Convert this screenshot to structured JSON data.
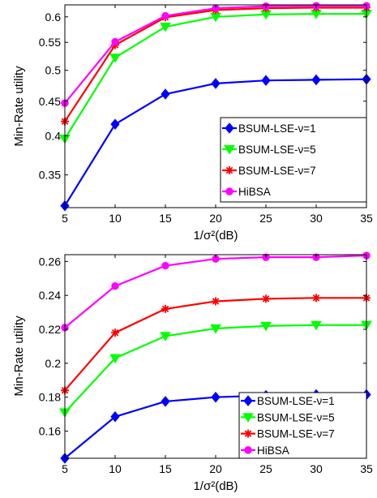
{
  "chart_data": [
    {
      "type": "line",
      "xlabel": "1/σ²(dB)",
      "ylabel": "Min-Rate utility",
      "x": [
        5,
        10,
        15,
        20,
        25,
        30,
        35
      ],
      "xlim": [
        5,
        35
      ],
      "ylim": [
        0.313,
        0.625
      ],
      "y_scale": "log",
      "xticks": [
        "5",
        "10",
        "15",
        "20",
        "25",
        "30",
        "35"
      ],
      "yticks": [
        0.35,
        0.4,
        0.45,
        0.5,
        0.55,
        0.6
      ],
      "ytick_labels": [
        "0.35",
        "0.4",
        "0.45",
        "0.5",
        "0.55",
        "0.6"
      ],
      "grid": false,
      "legend_position": "bottom-right",
      "series": [
        {
          "name": "BSUM-LSE-ν=1",
          "color": "#0000ff",
          "marker": "diamond",
          "values": [
            0.315,
            0.416,
            0.461,
            0.478,
            0.483,
            0.484,
            0.485
          ]
        },
        {
          "name": "BSUM-LSE-ν=5",
          "color": "#00ff00",
          "marker": "triangle-down",
          "values": [
            0.396,
            0.522,
            0.58,
            0.6,
            0.605,
            0.606,
            0.606
          ]
        },
        {
          "name": "BSUM-LSE-ν=7",
          "color": "#ff0000",
          "marker": "asterisk",
          "values": [
            0.42,
            0.545,
            0.599,
            0.614,
            0.618,
            0.619,
            0.619
          ]
        },
        {
          "name": "HiBSA",
          "color": "#ff00ff",
          "marker": "circle",
          "values": [
            0.447,
            0.551,
            0.602,
            0.618,
            0.622,
            0.623,
            0.623
          ]
        }
      ]
    },
    {
      "type": "line",
      "xlabel": "1/σ²(dB)",
      "ylabel": "Min-Rate utility",
      "x": [
        5,
        10,
        15,
        20,
        25,
        30,
        35
      ],
      "xlim": [
        5,
        35
      ],
      "ylim": [
        0.144,
        0.264
      ],
      "y_scale": "linear",
      "xticks": [
        "5",
        "10",
        "15",
        "20",
        "25",
        "30",
        "35"
      ],
      "yticks": [
        0.16,
        0.18,
        0.2,
        0.22,
        0.24,
        0.26
      ],
      "ytick_labels": [
        "0.16",
        "0.18",
        "0.2",
        "0.22",
        "0.24",
        "0.26"
      ],
      "grid": false,
      "legend_position": "bottom-right",
      "series": [
        {
          "name": "BSUM-LSE-ν=1",
          "color": "#0000ff",
          "marker": "diamond",
          "values": [
            0.144,
            0.1685,
            0.1775,
            0.18,
            0.181,
            0.1815,
            0.1815
          ]
        },
        {
          "name": "BSUM-LSE-ν=5",
          "color": "#00ff00",
          "marker": "triangle-down",
          "values": [
            0.171,
            0.203,
            0.216,
            0.2205,
            0.222,
            0.2225,
            0.2225
          ]
        },
        {
          "name": "BSUM-LSE-ν=7",
          "color": "#ff0000",
          "marker": "asterisk",
          "values": [
            0.184,
            0.218,
            0.232,
            0.2365,
            0.238,
            0.2385,
            0.2385
          ]
        },
        {
          "name": "HiBSA",
          "color": "#ff00ff",
          "marker": "circle",
          "values": [
            0.221,
            0.2455,
            0.2575,
            0.2615,
            0.2625,
            0.2625,
            0.2635
          ]
        }
      ]
    }
  ]
}
